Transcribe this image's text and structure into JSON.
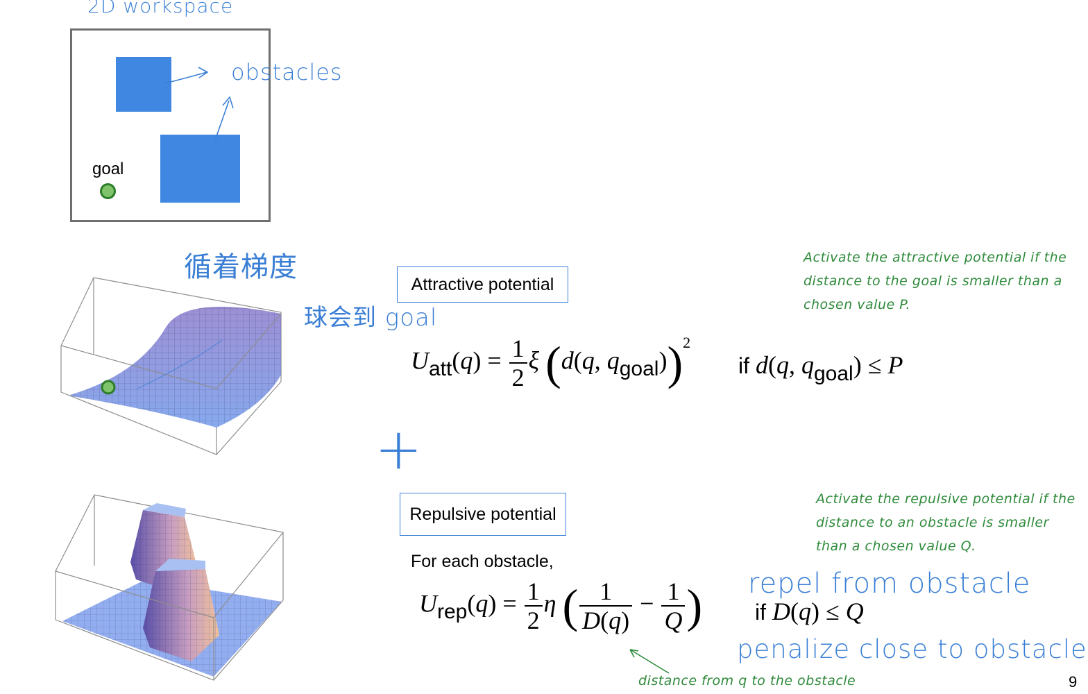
{
  "workspace": {
    "title": "2D workspace",
    "goal_label": "goal",
    "obstacles_label": "obstacles",
    "colors": {
      "obstacle": "#3f87e0",
      "goal": "#4aa33f",
      "goal_ring": "#2c7d2a",
      "frame": "#6f6f6f"
    }
  },
  "annotations": {
    "follow_gradient": "循着梯度",
    "ball_reach_goal": "球会到 goal",
    "plus": "+",
    "repel": "repel from obstacle",
    "penalize": "penalize close to obstacle",
    "distance_note": "distance from q to the obstacle"
  },
  "attractive": {
    "label": "Attractive potential",
    "note": "Activate the attractive potential if the distance to the goal is smaller than a chosen value P.",
    "condition_if": "if",
    "half_num": "1",
    "half_den": "2",
    "exponent": "2"
  },
  "repulsive": {
    "label": "Repulsive potential",
    "intro": "For each obstacle,",
    "note": "Activate the repulsive potential if the distance to an obstacle is smaller than a chosen value Q.",
    "condition_if": "if",
    "half_num": "1",
    "half_den": "2"
  },
  "page_number": "9"
}
